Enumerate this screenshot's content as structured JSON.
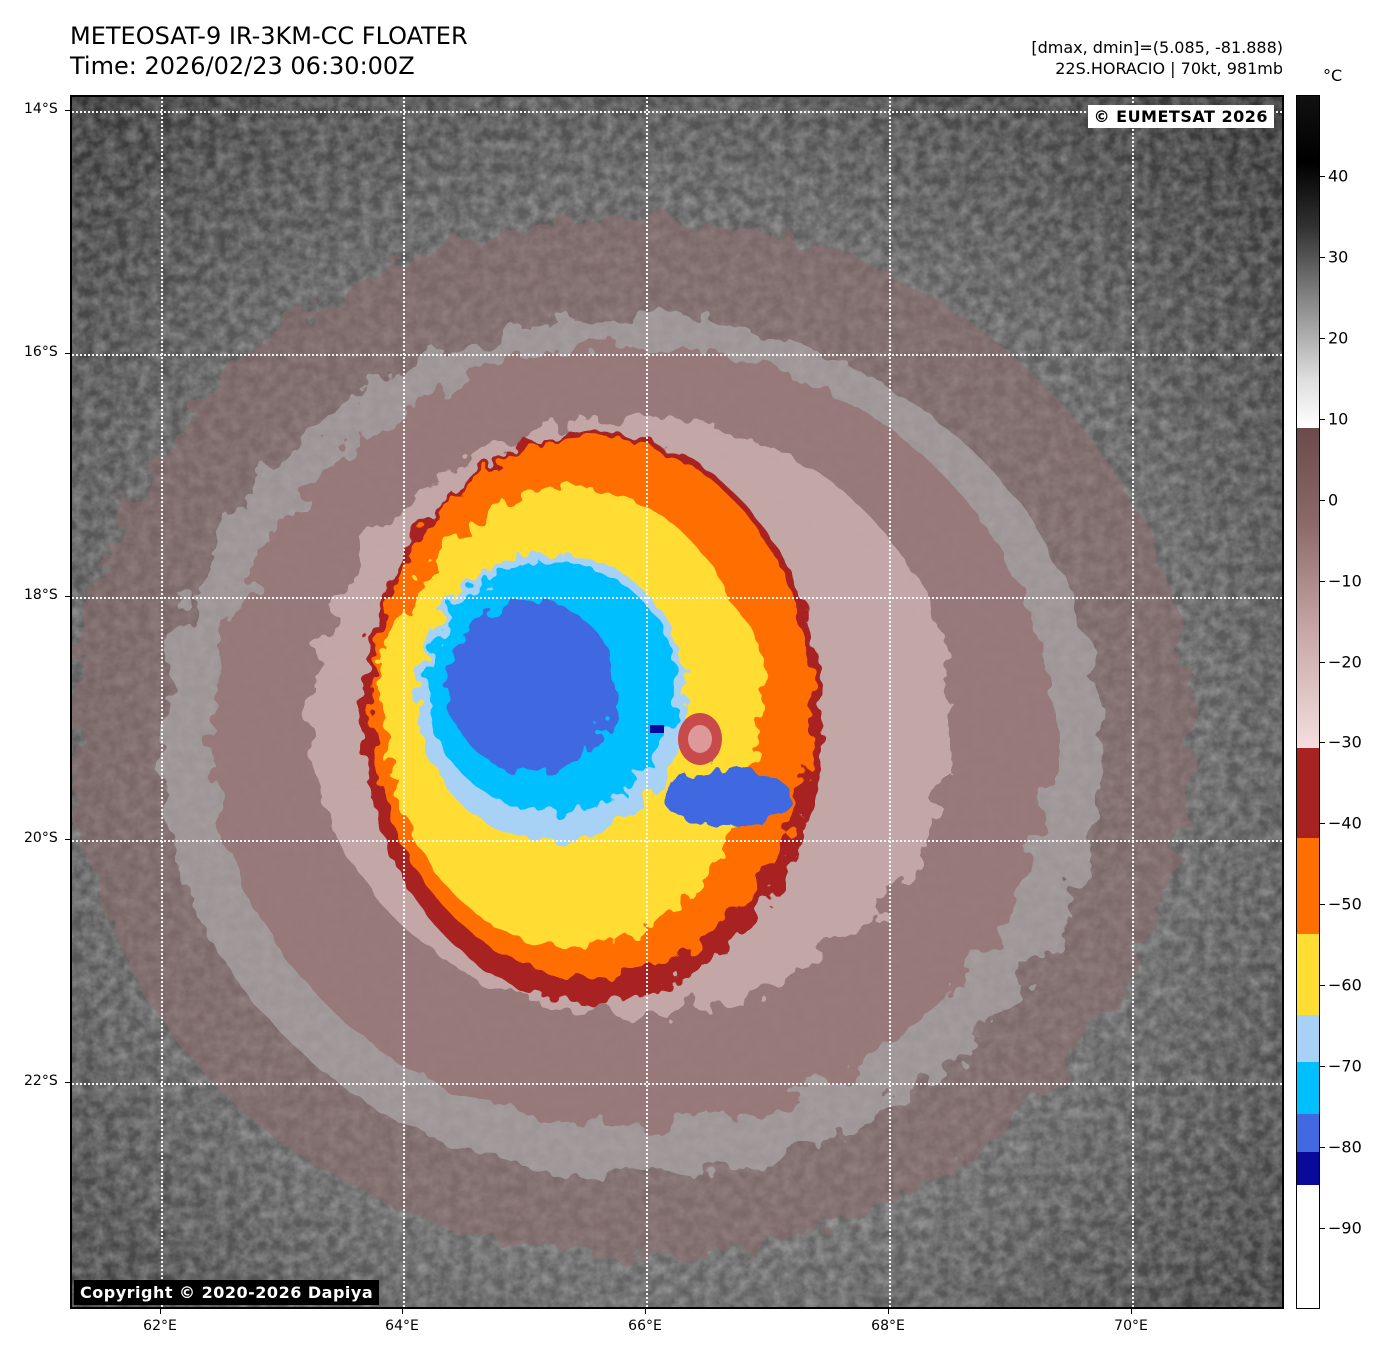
{
  "header": {
    "title_line1": "METEOSAT-9 IR-3KM-CC FLOATER",
    "title_line2": "Time: 2026/02/23 06:30:00Z",
    "info_line1": "[dmax, dmin]=(5.085, -81.888)",
    "info_line2": "22S.HORACIO | 70kt, 981mb"
  },
  "map": {
    "lat_labels": [
      "14°S",
      "16°S",
      "18°S",
      "20°S",
      "22°S"
    ],
    "lon_labels": [
      "62°E",
      "64°E",
      "66°E",
      "68°E",
      "70°E"
    ],
    "watermark_top": "© EUMETSAT 2026",
    "watermark_bottom": "Copyright © 2020-2026 Dapiya",
    "storm": {
      "name": "22S.HORACIO",
      "center_lon": 66.5,
      "center_lat": -19.2
    },
    "colors": {
      "background_warm": "#3a3a3a",
      "clouds_gray": "#9a9a9a",
      "pink_ring": "#8c6a6a",
      "dark_red": "#a82222",
      "orange": "#ff6e00",
      "yellow": "#ffdd33",
      "light_blue": "#a8d2f5",
      "cyan": "#00bfff",
      "royal_blue": "#4169e1",
      "navy": "#0a0a9a"
    }
  },
  "colorbar": {
    "unit": "°C",
    "tick_labels": [
      "40",
      "30",
      "20",
      "10",
      "0",
      "−10",
      "−20",
      "−30",
      "−40",
      "−50",
      "−60",
      "−70",
      "−80",
      "−90"
    ],
    "tick_values": [
      40,
      30,
      20,
      10,
      0,
      -10,
      -20,
      -30,
      -40,
      -50,
      -60,
      -70,
      -80,
      -90
    ],
    "range": [
      -100,
      50
    ]
  }
}
